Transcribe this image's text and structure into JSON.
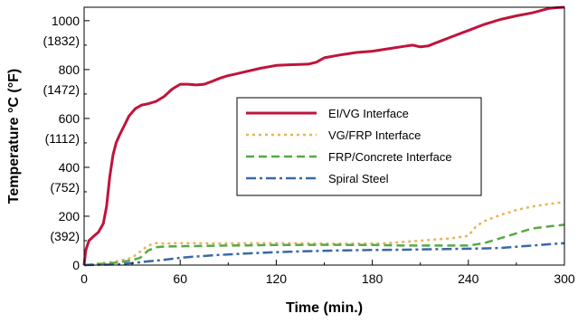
{
  "chart_data": {
    "type": "line",
    "xlabel": "Time (min.)",
    "ylabel": "Temperature °C (°F)",
    "xlim": [
      0,
      300
    ],
    "ylim": [
      0,
      1055
    ],
    "x_ticks": [
      {
        "value": 0,
        "label": "0"
      },
      {
        "value": 60,
        "label": "60"
      },
      {
        "value": 120,
        "label": "120"
      },
      {
        "value": 180,
        "label": "180"
      },
      {
        "value": 240,
        "label": "240"
      },
      {
        "value": 300,
        "label": "300"
      }
    ],
    "y_ticks": [
      {
        "value": 0,
        "label": "0",
        "secondary": ""
      },
      {
        "value": 200,
        "label": "200",
        "secondary": "(392)"
      },
      {
        "value": 400,
        "label": "400",
        "secondary": "(752)"
      },
      {
        "value": 600,
        "label": "600",
        "secondary": "(1112)"
      },
      {
        "value": 800,
        "label": "800",
        "secondary": "(1472)"
      },
      {
        "value": 1000,
        "label": "1000",
        "secondary": "(1832)"
      }
    ],
    "grid": false,
    "legend_position": "center-right",
    "series": [
      {
        "name": "EI/VG Interface",
        "color": "#c0143c",
        "dash": "solid",
        "x": [
          0,
          1,
          3,
          6,
          9,
          12,
          14,
          16,
          18,
          20,
          22,
          25,
          28,
          32,
          36,
          40,
          45,
          50,
          55,
          60,
          65,
          70,
          75,
          80,
          85,
          90,
          95,
          100,
          110,
          120,
          130,
          140,
          145,
          150,
          160,
          170,
          180,
          190,
          200,
          205,
          210,
          215,
          220,
          230,
          240,
          250,
          260,
          270,
          280,
          290,
          295,
          300
        ],
        "y": [
          0,
          60,
          100,
          118,
          135,
          170,
          240,
          360,
          450,
          500,
          530,
          570,
          610,
          640,
          655,
          660,
          670,
          690,
          720,
          740,
          740,
          737,
          740,
          752,
          765,
          775,
          782,
          790,
          805,
          817,
          820,
          822,
          830,
          848,
          860,
          870,
          875,
          885,
          895,
          900,
          893,
          897,
          910,
          935,
          960,
          985,
          1005,
          1020,
          1032,
          1050,
          1053,
          1055
        ]
      },
      {
        "name": "VG/FRP Interface",
        "color": "#e8b45a",
        "dash": "dotted",
        "x": [
          0,
          10,
          20,
          30,
          35,
          40,
          45,
          50,
          60,
          90,
          120,
          150,
          180,
          190,
          210,
          230,
          240,
          245,
          250,
          260,
          270,
          280,
          290,
          300
        ],
        "y": [
          0,
          7,
          15,
          30,
          55,
          80,
          90,
          88,
          90,
          89,
          90,
          88,
          88,
          90,
          100,
          110,
          120,
          160,
          180,
          205,
          225,
          240,
          250,
          258
        ]
      },
      {
        "name": "FRP/Concrete Interface",
        "color": "#55aa44",
        "dash": "dashed",
        "x": [
          0,
          20,
          30,
          35,
          40,
          45,
          50,
          60,
          90,
          120,
          150,
          180,
          200,
          220,
          240,
          250,
          260,
          270,
          280,
          290,
          300
        ],
        "y": [
          0,
          10,
          20,
          30,
          60,
          73,
          76,
          77,
          80,
          82,
          83,
          82,
          80,
          80,
          80,
          90,
          110,
          130,
          150,
          158,
          165
        ]
      },
      {
        "name": "Spiral Steel",
        "color": "#3a68a8",
        "dash": "dashdot",
        "x": [
          0,
          20,
          30,
          40,
          50,
          60,
          80,
          100,
          120,
          140,
          160,
          180,
          200,
          220,
          240,
          260,
          270,
          280,
          290,
          300
        ],
        "y": [
          0,
          3,
          8,
          15,
          22,
          30,
          40,
          47,
          53,
          57,
          60,
          62,
          63,
          65,
          67,
          70,
          75,
          80,
          85,
          90
        ]
      }
    ]
  }
}
